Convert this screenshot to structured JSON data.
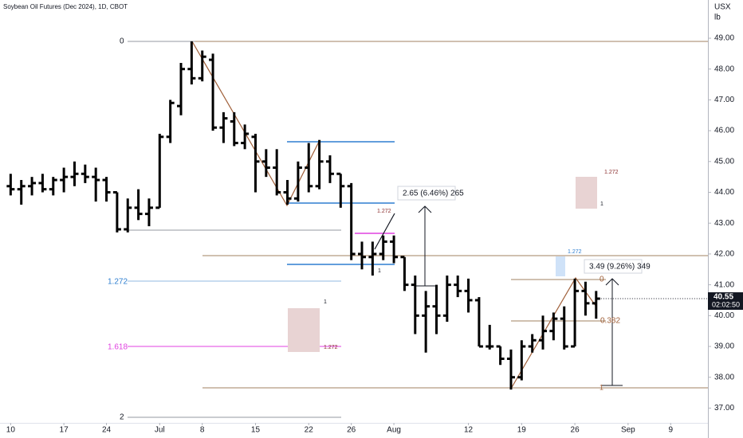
{
  "chart_data": {
    "type": "ohlc",
    "title": "Soybean Oil Futures (Dec 2024), 1D, CBOT",
    "unit_top": "USX",
    "unit_bottom": "lb",
    "x": [
      0,
      1,
      2,
      3,
      4,
      5,
      6,
      7,
      8,
      9,
      10,
      11,
      12,
      13,
      14,
      15,
      16,
      17,
      18,
      19,
      20,
      21,
      22,
      23,
      24,
      25,
      26,
      27,
      28,
      29,
      30,
      31,
      32,
      33,
      34,
      35,
      36,
      37,
      38,
      39,
      40,
      41,
      42,
      43,
      44,
      45,
      46,
      47,
      48,
      49,
      50,
      51,
      52,
      53,
      54,
      55
    ],
    "open": [
      44.2,
      44.1,
      44.2,
      44.3,
      44.1,
      44.4,
      44.5,
      44.6,
      44.5,
      44.4,
      44.0,
      42.8,
      43.5,
      43.3,
      43.5,
      45.8,
      46.8,
      48.0,
      47.7,
      48.3,
      46.1,
      46.3,
      45.6,
      45.8,
      45.0,
      44.8,
      44.0,
      43.8,
      44.8,
      44.2,
      45.0,
      44.6,
      44.2,
      42.0,
      41.9,
      42.0,
      42.4,
      41.9,
      41.0,
      40.0,
      40.3,
      40.0,
      41.0,
      40.8,
      40.5,
      39.0,
      39.0,
      38.6,
      38.0,
      39.0,
      39.2,
      39.5,
      39.9,
      39.0,
      40.8,
      40.4
    ],
    "high": [
      44.6,
      44.4,
      44.5,
      44.6,
      44.5,
      44.8,
      45.0,
      44.9,
      44.8,
      44.5,
      44.0,
      43.8,
      44.1,
      43.8,
      45.9,
      47.0,
      48.2,
      48.9,
      48.6,
      48.5,
      46.6,
      46.6,
      46.2,
      45.9,
      45.4,
      45.4,
      44.4,
      45.0,
      45.6,
      45.7,
      45.2,
      44.6,
      44.3,
      42.4,
      42.4,
      42.6,
      42.6,
      41.9,
      41.3,
      40.8,
      41.0,
      41.3,
      41.3,
      41.2,
      40.6,
      39.7,
      39.0,
      38.9,
      39.2,
      39.4,
      40.0,
      40.1,
      40.3,
      41.2,
      41.1,
      40.8
    ],
    "low": [
      43.9,
      43.6,
      43.9,
      44.0,
      43.9,
      44.0,
      44.2,
      44.3,
      43.7,
      43.7,
      42.7,
      42.7,
      43.1,
      42.9,
      43.5,
      45.6,
      46.5,
      47.5,
      47.6,
      46.0,
      45.6,
      45.5,
      45.4,
      44.0,
      44.5,
      43.9,
      43.6,
      43.7,
      44.0,
      44.1,
      44.3,
      43.5,
      41.8,
      41.5,
      41.3,
      41.8,
      41.7,
      40.8,
      39.4,
      38.8,
      39.4,
      39.8,
      40.6,
      40.1,
      39.0,
      38.9,
      38.4,
      37.6,
      37.9,
      38.8,
      38.9,
      39.2,
      38.9,
      39.0,
      40.0,
      39.9
    ],
    "close": [
      44.1,
      44.2,
      44.3,
      44.1,
      44.4,
      44.5,
      44.6,
      44.5,
      44.4,
      44.0,
      42.8,
      43.5,
      43.3,
      43.5,
      45.8,
      46.9,
      48.0,
      47.7,
      48.4,
      46.1,
      46.4,
      45.6,
      45.9,
      45.0,
      44.8,
      44.0,
      43.8,
      44.8,
      44.2,
      45.0,
      44.6,
      44.2,
      42.0,
      41.9,
      42.0,
      42.4,
      41.9,
      41.0,
      40.0,
      40.3,
      40.0,
      41.0,
      40.8,
      40.5,
      39.0,
      39.0,
      38.6,
      38.0,
      39.0,
      39.2,
      39.5,
      39.9,
      39.0,
      40.8,
      40.4,
      40.55
    ],
    "color": "#000000",
    "xlim": [
      -1,
      65.5
    ],
    "xticks": [
      {
        "value": 0,
        "label": "10"
      },
      {
        "value": 5,
        "label": "17"
      },
      {
        "value": 9,
        "label": "24"
      },
      {
        "value": 14,
        "label": "Jul"
      },
      {
        "value": 18,
        "label": "8"
      },
      {
        "value": 23,
        "label": "15"
      },
      {
        "value": 28,
        "label": "22"
      },
      {
        "value": 32,
        "label": "26"
      },
      {
        "value": 36,
        "label": "Aug"
      },
      {
        "value": 43,
        "label": "12"
      },
      {
        "value": 48,
        "label": "19"
      },
      {
        "value": 53,
        "label": "26"
      },
      {
        "value": 58,
        "label": "Sep"
      },
      {
        "value": 62,
        "label": "9"
      }
    ],
    "ylim": [
      36.52,
      50.24
    ],
    "yticks": [
      {
        "value": 37,
        "label": "37.00"
      },
      {
        "value": 38,
        "label": "38.00"
      },
      {
        "value": 39,
        "label": "39.00"
      },
      {
        "value": 40,
        "label": "40.00"
      },
      {
        "value": 41,
        "label": "41.00"
      },
      {
        "value": 42,
        "label": "42.00"
      },
      {
        "value": 43,
        "label": "43.00"
      },
      {
        "value": 44,
        "label": "44.00"
      },
      {
        "value": 45,
        "label": "45.00"
      },
      {
        "value": 46,
        "label": "46.00"
      },
      {
        "value": 47,
        "label": "47.00"
      },
      {
        "value": 48,
        "label": "48.00"
      },
      {
        "value": 49,
        "label": "49.00"
      }
    ],
    "last_price": 40.55,
    "countdown": "02:02:50",
    "annotations": [
      "0",
      "1.272",
      "1.618",
      "2",
      "1.272",
      "1",
      "1.272",
      "1",
      "1.272",
      "1",
      "1.272",
      "0",
      "0.382",
      "1",
      "2.65 (6.46%) 265",
      "3.49 (9.26%) 349"
    ]
  }
}
